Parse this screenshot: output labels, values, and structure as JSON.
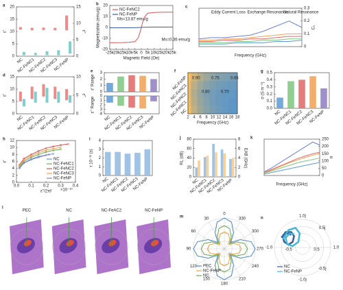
{
  "chart_data": [
    {
      "type": "range",
      "label": "a",
      "ylabel": "ε'",
      "y2label": "ε''",
      "categories": [
        "NC",
        "NC-FeNC1",
        "NC-FeNC2",
        "NC-FeNC3",
        "NC-FeNP"
      ],
      "ylim": [
        0,
        20
      ],
      "yticks": [
        0,
        5,
        10,
        15,
        20
      ],
      "y2lim": [
        0,
        15
      ],
      "y2ticks": [
        0,
        5,
        10,
        15
      ],
      "series": [
        {
          "color": "#ef8a8a",
          "low": [
            10.8,
            10.5,
            10.6,
            10.5,
            10.5
          ],
          "high": [
            11.8,
            11.5,
            11.6,
            11.5,
            16.5
          ]
        },
        {
          "color": "#7fcfcf",
          "axis": "y2",
          "low": [
            0.3,
            0.3,
            0.3,
            0.3,
            0.8
          ],
          "high": [
            1.3,
            1.0,
            1.5,
            1.8,
            4.5
          ]
        }
      ]
    },
    {
      "type": "line",
      "label": "b",
      "xlabel": "Magnetic Field (Oe)",
      "ylabel": "Magnetization (emu/g)",
      "legend": "upper-left",
      "annotations": [
        "Ms=13.87 emu/g",
        "Ms=0.36 emu/g"
      ],
      "x": [
        -25000,
        -20000,
        -15000,
        -10000,
        -5000,
        -2500,
        -1000,
        0,
        1000,
        2500,
        5000,
        10000,
        15000,
        20000,
        25000
      ],
      "xlim": [
        -25000,
        25000
      ],
      "xticks": [
        {
          "value": -25000,
          "label": "-25k"
        },
        {
          "value": -20000,
          "label": "-20k"
        },
        {
          "value": -15000,
          "label": "-15k"
        },
        {
          "value": -10000,
          "label": "-10k"
        },
        {
          "value": -5000,
          "label": "-5k"
        },
        0,
        {
          "value": 5000,
          "label": "5k"
        },
        {
          "value": 10000,
          "label": "10k"
        },
        {
          "value": 15000,
          "label": "15k"
        },
        {
          "value": 20000,
          "label": "20k"
        },
        {
          "value": 25000,
          "label": "25k"
        }
      ],
      "ylim": [
        -20,
        20
      ],
      "yticks": [
        -20,
        -10,
        0,
        10,
        20
      ],
      "series": [
        {
          "name": "NC-FeNC2",
          "color": "#d9534f",
          "values": [
            -13.87,
            -13.87,
            -13.86,
            -13.6,
            -12.9,
            -9.46,
            -4.46,
            0,
            4.46,
            9.46,
            12.9,
            13.6,
            13.86,
            13.87,
            13.87
          ]
        },
        {
          "name": "NC-FeNP",
          "color": "#3b5ba9",
          "values": [
            -0.36,
            -0.35,
            -0.34,
            -0.3,
            -0.2,
            -0.12,
            -0.05,
            0,
            0.05,
            0.12,
            0.2,
            0.3,
            0.34,
            0.35,
            0.36
          ]
        }
      ]
    },
    {
      "type": "line",
      "label": "c",
      "xlabel": "Frequency (GHz)",
      "ylabel": "C₀",
      "yside": "right",
      "annotations": [
        "Eddy Current Loss",
        "Exchange Resonance",
        "Natural Resonance"
      ],
      "x": [
        2,
        4,
        6,
        8,
        10,
        12,
        14,
        16,
        18
      ],
      "xlim": [
        2,
        18
      ],
      "ylim": [
        0,
        0.3
      ],
      "yticks": [
        0,
        0.1,
        0.2,
        0.3
      ],
      "series": [
        {
          "color": "#5b9bd5",
          "values": [
            0.02,
            0.02,
            0.02,
            0.03,
            0.03,
            0.03,
            0.04,
            0.04,
            0.05
          ]
        },
        {
          "color": "#7dc47d",
          "values": [
            0.03,
            0.03,
            0.03,
            0.04,
            0.04,
            0.05,
            0.05,
            0.06,
            0.06
          ]
        },
        {
          "color": "#e06666",
          "values": [
            0.04,
            0.04,
            0.05,
            0.05,
            0.06,
            0.06,
            0.07,
            0.08,
            0.08
          ]
        },
        {
          "color": "#f0a050",
          "values": [
            0.05,
            0.05,
            0.06,
            0.06,
            0.07,
            0.08,
            0.09,
            0.1,
            0.1
          ]
        },
        {
          "color": "#6b7fd6",
          "values": [
            0.06,
            0.07,
            0.07,
            0.08,
            0.09,
            0.12,
            0.16,
            0.2,
            0.15
          ]
        }
      ]
    },
    {
      "type": "range",
      "label": "d",
      "ylabel": "ε'",
      "y2label": "ε''",
      "categories": [
        "NC",
        "NC-FeNC1",
        "NC-FeNC2",
        "NC-FeNC3",
        "NC-FeNP"
      ],
      "ylim": [
        0,
        15
      ],
      "yticks": [
        0,
        5,
        10,
        15
      ],
      "y2lim": [
        0,
        10
      ],
      "y2ticks": [
        0,
        5,
        10
      ],
      "series": [
        {
          "color": "#ef8a8a",
          "low": [
            5,
            6,
            7,
            6,
            5.5
          ],
          "high": [
            9,
            11,
            12,
            11,
            10
          ]
        },
        {
          "color": "#7fcfcf",
          "axis": "y2",
          "low": [
            2,
            3,
            3,
            3,
            3
          ],
          "high": [
            4,
            6,
            7,
            6,
            5
          ]
        }
      ]
    },
    {
      "type": "bar",
      "label": "e",
      "ylabel": "ε' Range",
      "ylim": [
        0,
        3
      ],
      "yticks": [
        0,
        1,
        2,
        3
      ],
      "values": [
        1.4,
        2.4,
        2.6,
        2.5,
        2.0
      ],
      "colors": [
        "#5b9bd5",
        "#7dc47d",
        "#e06666",
        "#f0a050",
        "#8e7cc3"
      ]
    },
    {
      "type": "bar",
      "ylabel": "ε'' Range",
      "invert": true,
      "ylim": [
        0,
        4
      ],
      "yticks": [
        0,
        1,
        2,
        3,
        4
      ],
      "categories": [
        "NC",
        "NC-FeNC1",
        "NC-FeNC2",
        "NC-FeNC3",
        "NC-FeNP"
      ],
      "values": [
        1.5,
        2.2,
        2.6,
        2.8,
        1.2
      ],
      "colors": [
        "#5b9bd5",
        "#7dc47d",
        "#e06666",
        "#f0a050",
        "#8e7cc3"
      ]
    },
    {
      "type": "heatmap",
      "label": "f",
      "xlabel": "Frequency (GHz)",
      "annotations": [
        "0.90",
        "0.80",
        "0.75",
        "0.70",
        "0.65"
      ],
      "x": [
        2,
        4,
        6,
        8,
        10,
        12,
        14,
        16,
        18
      ],
      "xlim": [
        2,
        18
      ],
      "xticks": [
        2,
        4,
        6,
        8,
        10,
        12,
        14,
        16,
        18
      ],
      "categories": [
        "NC",
        "NC-FeNC1",
        "NC-FeNC2",
        "NC-FeNC3",
        "NC-FeNP"
      ],
      "z": [
        [
          0.95,
          0.85,
          0.78,
          0.74,
          0.71,
          0.69,
          0.67,
          0.66,
          0.65
        ],
        [
          0.93,
          0.83,
          0.77,
          0.73,
          0.7,
          0.68,
          0.67,
          0.66,
          0.66
        ],
        [
          0.92,
          0.82,
          0.76,
          0.72,
          0.7,
          0.68,
          0.67,
          0.67,
          0.66
        ],
        [
          0.93,
          0.84,
          0.78,
          0.74,
          0.72,
          0.7,
          0.69,
          0.68,
          0.68
        ],
        [
          0.96,
          0.88,
          0.82,
          0.78,
          0.75,
          0.73,
          0.72,
          0.71,
          0.7
        ]
      ]
    },
    {
      "type": "bar",
      "label": "g",
      "ylabel": "σ (S m⁻¹)",
      "ylim": [
        0,
        0.5
      ],
      "yticks": [
        {
          "value": 0,
          "label": "0.0"
        },
        0.1,
        0.2,
        0.3,
        0.4,
        0.5
      ],
      "categories": [
        "NC",
        "NC-FeNC1",
        "NC-FeNC2",
        "NC-FeNC3",
        "NC-FeNP"
      ],
      "values": [
        0.15,
        0.38,
        0.4,
        0.45,
        0.28
      ],
      "colors": [
        "#5b9bd5",
        "#7dc47d",
        "#e06666",
        "#f0a050",
        "#8e7cc3"
      ]
    },
    {
      "type": "line",
      "label": "h",
      "xlabel": "ε''/2πf",
      "ylabel": "ε'",
      "legend": "lower-right",
      "annotations": [
        "×10⁻¹⁰"
      ],
      "xlim": [
        0,
        0.4
      ],
      "xticks": [
        {
          "value": 0,
          "label": "0.0"
        },
        0.1,
        0.2,
        0.3,
        0.4
      ],
      "ylim": [
        0,
        12
      ],
      "yticks": [
        0,
        2,
        4,
        6,
        8,
        10,
        12
      ],
      "series": [
        {
          "name": "NC",
          "color": "#5b9bd5",
          "x": [
            0.02,
            0.05,
            0.1,
            0.15,
            0.2,
            0.25
          ],
          "values": [
            4,
            5.5,
            6.5,
            7.2,
            7.8,
            8.2
          ]
        },
        {
          "name": "NC-FeNC1",
          "color": "#6aa84f",
          "x": [
            0.02,
            0.05,
            0.1,
            0.15,
            0.2,
            0.25,
            0.3
          ],
          "values": [
            4.5,
            6,
            7.2,
            8,
            8.7,
            9.2,
            9.5
          ]
        },
        {
          "name": "NC-FeNC2",
          "color": "#d9534f",
          "x": [
            0.02,
            0.05,
            0.1,
            0.15,
            0.2,
            0.25,
            0.3,
            0.35
          ],
          "values": [
            5,
            6.8,
            8,
            9,
            9.8,
            10.3,
            10.7,
            11
          ]
        },
        {
          "name": "NC-FeNC3",
          "color": "#f0a050",
          "x": [
            0.02,
            0.05,
            0.1,
            0.15,
            0.2,
            0.25,
            0.3
          ],
          "values": [
            4.8,
            6.4,
            7.6,
            8.5,
            9.2,
            9.7,
            10
          ]
        },
        {
          "name": "NC-FeNP",
          "color": "#8e7cc3",
          "x": [
            0.02,
            0.05,
            0.1,
            0.15,
            0.22
          ],
          "values": [
            4.2,
            5.6,
            6.7,
            7.4,
            8
          ]
        }
      ]
    },
    {
      "type": "bar",
      "label": "i",
      "ylabel": "τ 10⁻¹¹ (s)",
      "ylim": [
        0,
        4
      ],
      "yticks": [
        0,
        1,
        2,
        3,
        4
      ],
      "categories": [
        "NC",
        "NC-FeNC1",
        "NC-FeNC2",
        "NC-FeNC3",
        "NC-FeNP"
      ],
      "values": [
        2.7,
        2.7,
        2.5,
        2.6,
        3.0
      ],
      "colors": [
        "#8fb9e0",
        "#8fb9e0",
        "#8fb9e0",
        "#8fb9e0",
        "#8fb9e0"
      ]
    },
    {
      "type": "bar",
      "label": "j",
      "ylabel": "RL (dB)",
      "y2label": "EAB (GHz)",
      "ylim": [
        0,
        80
      ],
      "yticks": [
        0,
        20,
        40,
        60,
        80
      ],
      "y2lim": [
        0,
        8
      ],
      "y2ticks": [
        0,
        2,
        4,
        6,
        8
      ],
      "categories": [
        "NC",
        "NC-FeNC1",
        "NC-FeNC2",
        "NC-FeNC3",
        "NC-FeNP"
      ],
      "series": [
        {
          "color": "#8fb9e0",
          "values": [
            20,
            42,
            70,
            58,
            38
          ]
        },
        {
          "color": "#f6c98a",
          "axis": "y2",
          "values": [
            3.5,
            4.5,
            5.2,
            5.0,
            4.0
          ]
        }
      ]
    },
    {
      "type": "line",
      "label": "k",
      "xlabel": "Frequency (GHz)",
      "ylabel": "α",
      "yside": "right",
      "x": [
        2,
        4,
        6,
        8,
        10,
        12,
        14,
        16,
        18
      ],
      "xlim": [
        2,
        18
      ],
      "ylim": [
        0,
        250
      ],
      "yticks": [
        0,
        50,
        100,
        150,
        200,
        250
      ],
      "series": [
        {
          "color": "#5b9bd5",
          "values": [
            10,
            20,
            30,
            40,
            50,
            60,
            70,
            80,
            90
          ]
        },
        {
          "color": "#7dc47d",
          "values": [
            15,
            30,
            45,
            60,
            75,
            90,
            100,
            110,
            120
          ]
        },
        {
          "color": "#e06666",
          "values": [
            20,
            40,
            60,
            80,
            100,
            120,
            135,
            150,
            160
          ]
        },
        {
          "color": "#f0a050",
          "values": [
            18,
            35,
            55,
            75,
            95,
            110,
            125,
            140,
            150
          ]
        },
        {
          "color": "#6b7fd6",
          "values": [
            25,
            50,
            80,
            110,
            140,
            170,
            200,
            230,
            210
          ]
        }
      ]
    },
    {
      "type": "image",
      "label": "l",
      "labels": [
        "PEC",
        "NC",
        "NC-FeAC2",
        "NC-FeNP"
      ]
    },
    {
      "type": "polar",
      "label": "m",
      "legend": "lower-left",
      "thetaticks": [
        0,
        30,
        60,
        90,
        120,
        150,
        180,
        210,
        240,
        270,
        300,
        330
      ],
      "angles": [
        0,
        15,
        30,
        45,
        60,
        75,
        90,
        105,
        120,
        135,
        150,
        165,
        180,
        195,
        210,
        225,
        240,
        255,
        270,
        285,
        300,
        315,
        330,
        345
      ],
      "rlim": [
        0,
        1
      ],
      "series": [
        {
          "name": "PEC",
          "color": "#4a86c8",
          "values": [
            1,
            0.9,
            0.6,
            0.3,
            0.6,
            0.9,
            1,
            0.9,
            0.6,
            0.3,
            0.6,
            0.9,
            1,
            0.9,
            0.6,
            0.3,
            0.6,
            0.9,
            1,
            0.9,
            0.6,
            0.3,
            0.6,
            0.9
          ]
        },
        {
          "name": "NC-FeNP",
          "color": "#e8a23c",
          "values": [
            0.55,
            0.5,
            0.35,
            0.2,
            0.35,
            0.5,
            0.55,
            0.5,
            0.35,
            0.2,
            0.35,
            0.5,
            0.55,
            0.5,
            0.35,
            0.2,
            0.35,
            0.5,
            0.55,
            0.5,
            0.35,
            0.2,
            0.35,
            0.5
          ]
        },
        {
          "name": "NC",
          "color": "#6aa84f",
          "values": [
            0.75,
            0.68,
            0.45,
            0.25,
            0.45,
            0.68,
            0.75,
            0.68,
            0.45,
            0.25,
            0.45,
            0.68,
            0.75,
            0.68,
            0.45,
            0.25,
            0.45,
            0.68,
            0.75,
            0.68,
            0.45,
            0.25,
            0.45,
            0.68
          ]
        }
      ]
    },
    {
      "type": "smith",
      "label": "n",
      "legend": "lower-left",
      "annotations": [
        "1.0j",
        "0.5j",
        "-0.5j",
        "-1.0j",
        "-0.5",
        "0.5",
        "1.0",
        "-1.0"
      ],
      "series": [
        {
          "name": "NC",
          "color": "#3d5a99",
          "x": [
            -0.75,
            -0.6,
            -0.4,
            -0.3,
            -0.35,
            -0.5,
            -0.65,
            -0.7,
            -0.55,
            -0.4
          ],
          "values": [
            0.35,
            0.55,
            0.55,
            0.4,
            0.2,
            0.1,
            0.2,
            0.4,
            0.5,
            0.45
          ]
        },
        {
          "name": "NC-FeNP",
          "color": "#3fb7d6",
          "x": [
            -0.7,
            -0.5,
            -0.25,
            -0.1,
            -0.15,
            -0.35,
            -0.55,
            -0.6,
            -0.45,
            -0.3
          ],
          "values": [
            0.3,
            0.62,
            0.7,
            0.5,
            0.2,
            0.05,
            0.12,
            0.35,
            0.5,
            0.48
          ]
        }
      ]
    }
  ]
}
